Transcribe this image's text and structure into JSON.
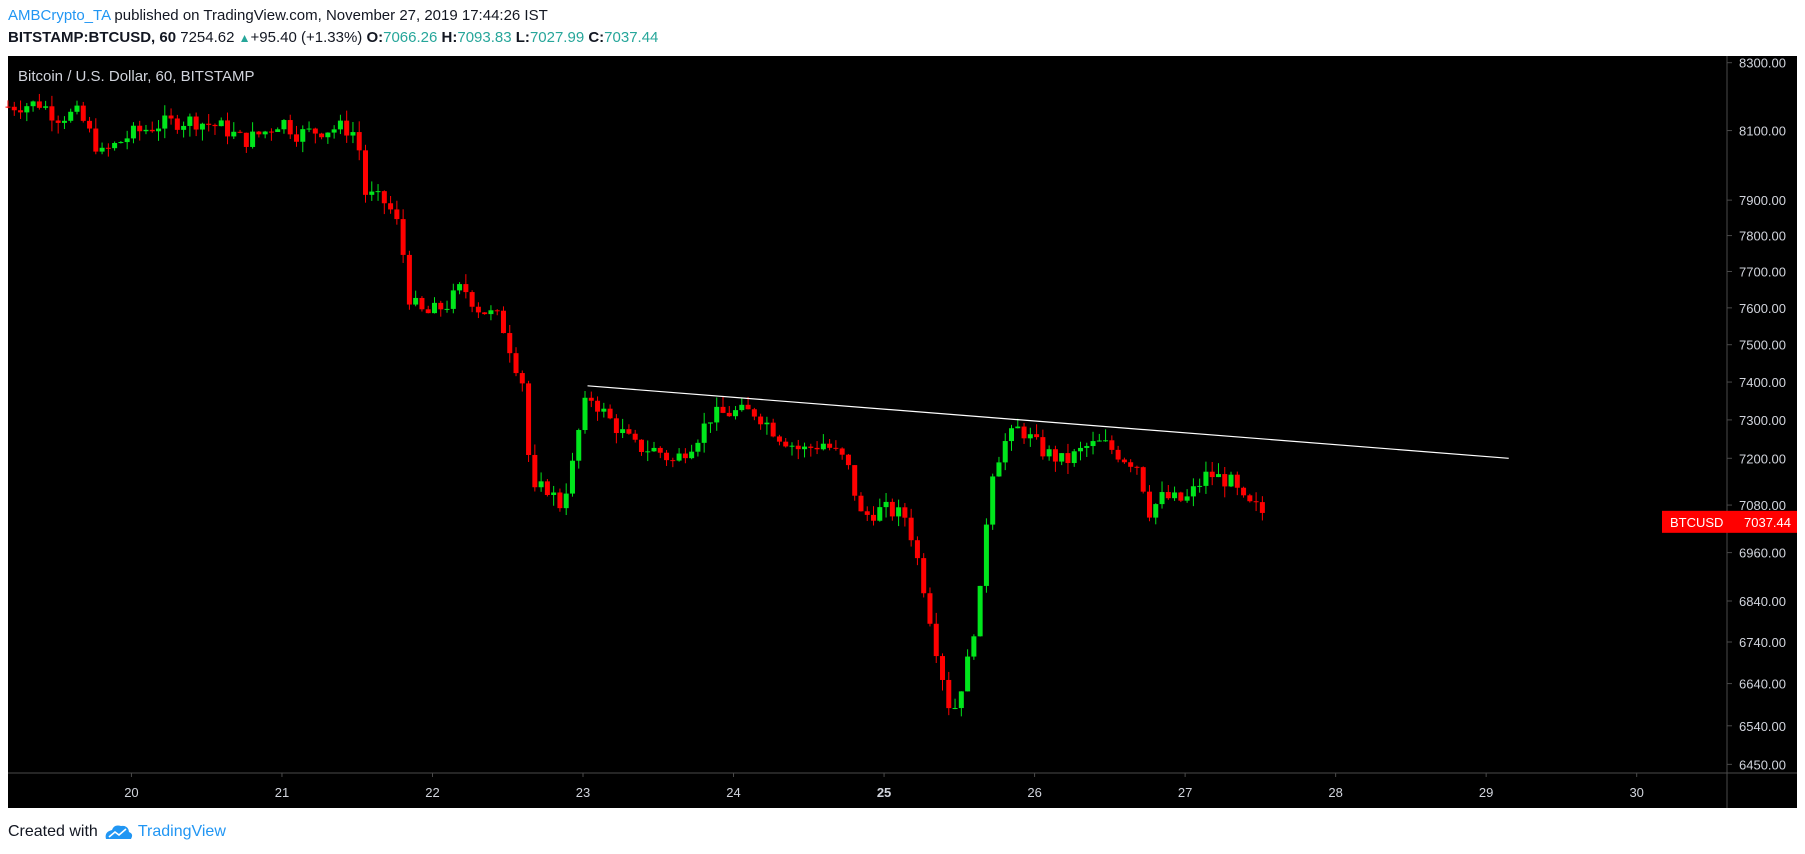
{
  "header": {
    "author": "AMBCrypto_TA",
    "published": " published on TradingView.com, November 27, 2019 17:44:26 IST"
  },
  "ticker": {
    "symbol": "BITSTAMP:BTCUSD, 60",
    "last": "7254.62",
    "change": "+95.40 (+1.33%)",
    "o_label": "O:",
    "o": "7066.26",
    "h_label": "H:",
    "h": "7093.83",
    "l_label": "L:",
    "l": "7027.99",
    "c_label": "C:",
    "c": "7037.44"
  },
  "footer": {
    "created_with": "Created with",
    "brand": "TradingView"
  },
  "colors": {
    "background": "#000000",
    "up": "#00e61c",
    "down": "#ff0000",
    "trendline": "#ffffff",
    "axis_text": "#d1d4dc",
    "label_bg": "#ff0000"
  },
  "chart_data": {
    "type": "candlestick",
    "title": "Bitcoin / U.S. Dollar, 60, BITSTAMP",
    "x_ticks": [
      "20",
      "21",
      "22",
      "23",
      "24",
      "25",
      "26",
      "27",
      "28",
      "29",
      "30"
    ],
    "x_tick_values": [
      20,
      21,
      22,
      23,
      24,
      25,
      26,
      27,
      28,
      29,
      30
    ],
    "xlim": [
      19.18,
      30.6
    ],
    "y_ticks": [
      8300,
      8100,
      7900,
      7800,
      7700,
      7600,
      7500,
      7400,
      7300,
      7200,
      7080,
      6960,
      6840,
      6740,
      6640,
      6540,
      6450
    ],
    "y_tick_labels": [
      "8300.00",
      "8100.00",
      "7900.00",
      "7800.00",
      "7700.00",
      "7600.00",
      "7500.00",
      "7400.00",
      "7300.00",
      "7200.00",
      "7080.00",
      "6960.00",
      "6840.00",
      "6740.00",
      "6640.00",
      "6540.00",
      "6450.00"
    ],
    "ylim": [
      6430,
      8320
    ],
    "y_scale": "log",
    "last_price_label": {
      "symbol": "BTCUSD",
      "value": "7037.44",
      "price": 7037.44
    },
    "trendline": {
      "x1": 23.03,
      "y1": 7390,
      "x2": 29.15,
      "y2": 7200
    },
    "price_path": [
      [
        19.18,
        8170
      ],
      [
        19.4,
        8180
      ],
      [
        19.5,
        8140
      ],
      [
        19.65,
        8150
      ],
      [
        19.8,
        8030
      ],
      [
        19.9,
        8060
      ],
      [
        20.0,
        8090
      ],
      [
        20.2,
        8120
      ],
      [
        20.4,
        8130
      ],
      [
        20.6,
        8110
      ],
      [
        20.75,
        8070
      ],
      [
        20.9,
        8100
      ],
      [
        21.0,
        8130
      ],
      [
        21.1,
        8090
      ],
      [
        21.25,
        8100
      ],
      [
        21.4,
        8110
      ],
      [
        21.5,
        8090
      ],
      [
        21.55,
        7920
      ],
      [
        21.7,
        7890
      ],
      [
        21.78,
        7820
      ],
      [
        21.85,
        7620
      ],
      [
        21.95,
        7580
      ],
      [
        22.1,
        7610
      ],
      [
        22.2,
        7660
      ],
      [
        22.3,
        7600
      ],
      [
        22.45,
        7570
      ],
      [
        22.55,
        7450
      ],
      [
        22.62,
        7380
      ],
      [
        22.65,
        7100
      ],
      [
        22.75,
        7130
      ],
      [
        22.85,
        7080
      ],
      [
        22.92,
        7160
      ],
      [
        23.0,
        7330
      ],
      [
        23.05,
        7360
      ],
      [
        23.2,
        7290
      ],
      [
        23.35,
        7230
      ],
      [
        23.5,
        7220
      ],
      [
        23.6,
        7190
      ],
      [
        23.75,
        7250
      ],
      [
        23.85,
        7310
      ],
      [
        24.0,
        7320
      ],
      [
        24.15,
        7320
      ],
      [
        24.3,
        7260
      ],
      [
        24.45,
        7220
      ],
      [
        24.6,
        7240
      ],
      [
        24.75,
        7190
      ],
      [
        24.85,
        7050
      ],
      [
        25.0,
        7070
      ],
      [
        25.15,
        7050
      ],
      [
        25.25,
        6900
      ],
      [
        25.35,
        6720
      ],
      [
        25.45,
        6560
      ],
      [
        25.55,
        6680
      ],
      [
        25.65,
        6880
      ],
      [
        25.7,
        7150
      ],
      [
        25.8,
        7240
      ],
      [
        25.9,
        7280
      ],
      [
        26.05,
        7220
      ],
      [
        26.2,
        7190
      ],
      [
        26.35,
        7230
      ],
      [
        26.45,
        7240
      ],
      [
        26.6,
        7200
      ],
      [
        26.7,
        7180
      ],
      [
        26.75,
        7060
      ],
      [
        26.85,
        7100
      ],
      [
        27.0,
        7090
      ],
      [
        27.15,
        7160
      ],
      [
        27.3,
        7140
      ],
      [
        27.4,
        7080
      ],
      [
        27.5,
        7070
      ],
      [
        27.55,
        7037
      ]
    ],
    "candle_range": [
      19.18,
      27.55
    ],
    "candle_interval": "60"
  }
}
